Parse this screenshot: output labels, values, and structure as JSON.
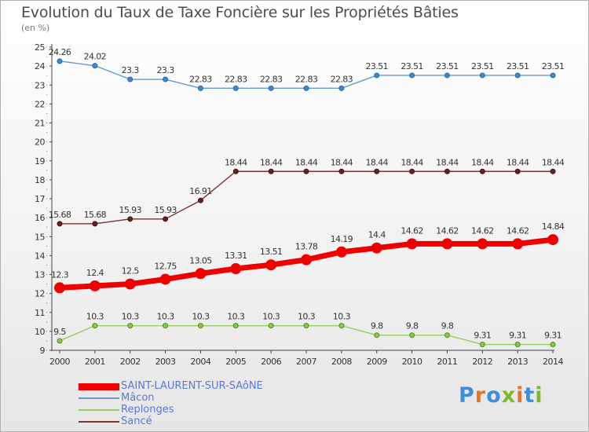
{
  "header": {
    "title": "Evolution du Taux de Taxe Foncière sur les Propriétés Bâties",
    "subtitle": "(en %)"
  },
  "logo": {
    "text": "Proxiti",
    "colors": [
      "#3d8fd6",
      "#e8741e",
      "#3d8fd6",
      "#7cb82f",
      "#e8741e",
      "#3d8fd6",
      "#7cb82f"
    ]
  },
  "chart_data": {
    "type": "line",
    "x": [
      "2000",
      "2001",
      "2002",
      "2003",
      "2004",
      "2005",
      "2006",
      "2007",
      "2008",
      "2009",
      "2010",
      "2011",
      "2012",
      "2013",
      "2014"
    ],
    "ylim": [
      9,
      25
    ],
    "yticks": [
      9,
      10,
      11,
      12,
      13,
      14,
      15,
      16,
      17,
      18,
      19,
      20,
      21,
      22,
      23,
      24,
      25
    ],
    "grid": false,
    "legend_position": "bottom-left",
    "series": [
      {
        "name": "SAINT-LAURENT-SUR-SAôNE",
        "color": "#ee0000",
        "labels": [
          "12.3",
          "12.4",
          "12.5",
          "12.75",
          "13.05",
          "13.31",
          "13.51",
          "13.78",
          "14.19",
          "14.4",
          "14.62",
          "14.62",
          "14.62",
          "14.62",
          "14.84"
        ],
        "values": [
          12.3,
          12.4,
          12.5,
          12.75,
          13.05,
          13.31,
          13.51,
          13.78,
          14.19,
          14.4,
          14.62,
          14.62,
          14.62,
          14.62,
          14.84
        ]
      },
      {
        "name": "Mâcon",
        "color": "#6699cc",
        "labels": [
          "24.26",
          "24.02",
          "23.3",
          "23.3",
          "22.83",
          "22.83",
          "22.83",
          "22.83",
          "22.83",
          "23.51",
          "23.51",
          "23.51",
          "23.51",
          "23.51",
          "23.51"
        ],
        "values": [
          24.26,
          24.02,
          23.3,
          23.3,
          22.83,
          22.83,
          22.83,
          22.83,
          22.83,
          23.51,
          23.51,
          23.51,
          23.51,
          23.51,
          23.51
        ]
      },
      {
        "name": "Replonges",
        "color": "#99cc66",
        "labels": [
          "9.5",
          "10.3",
          "10.3",
          "10.3",
          "10.3",
          "10.3",
          "10.3",
          "10.3",
          "10.3",
          "9.8",
          "9.8",
          "9.8",
          "9.31",
          "9.31",
          "9.31"
        ],
        "values": [
          9.5,
          10.3,
          10.3,
          10.3,
          10.3,
          10.3,
          10.3,
          10.3,
          10.3,
          9.8,
          9.8,
          9.8,
          9.31,
          9.31,
          9.31
        ]
      },
      {
        "name": "Sancé",
        "color": "#773333",
        "labels": [
          "15.68",
          "15.68",
          "15.93",
          "15.93",
          "16.91",
          "18.44",
          "18.44",
          "18.44",
          "18.44",
          "18.44",
          "18.44",
          "18.44",
          "18.44",
          "18.44",
          "18.44"
        ],
        "values": [
          15.68,
          15.68,
          15.93,
          15.93,
          16.91,
          18.44,
          18.44,
          18.44,
          18.44,
          18.44,
          18.44,
          18.44,
          18.44,
          18.44,
          18.44
        ]
      }
    ]
  }
}
